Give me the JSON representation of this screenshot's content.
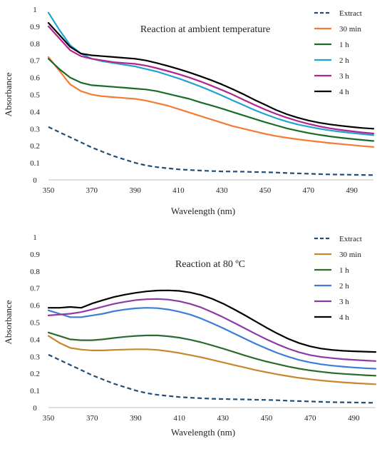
{
  "chart_data": [
    {
      "type": "line",
      "title": "Reaction at ambient temperature",
      "xlabel": "Wavelength (nm)",
      "ylabel": "Absorbance",
      "xlim": [
        350,
        500
      ],
      "ylim": [
        0,
        1
      ],
      "xticks": [
        "350",
        "370",
        "390",
        "410",
        "430",
        "450",
        "470",
        "490"
      ],
      "yticks": [
        "0",
        "0.1",
        "0.2",
        "0.3",
        "0.4",
        "0.5",
        "0.6",
        "0.7",
        "0.8",
        "0.9",
        "1"
      ],
      "grid": false,
      "legend_position": "right",
      "x": [
        350,
        355,
        360,
        365,
        370,
        375,
        380,
        385,
        390,
        395,
        400,
        405,
        410,
        415,
        420,
        425,
        430,
        435,
        440,
        445,
        450,
        455,
        460,
        465,
        470,
        475,
        480,
        485,
        490,
        495,
        500
      ],
      "series": [
        {
          "name": "Extract",
          "color": "#1f4e79",
          "dash": true,
          "values": [
            0.31,
            0.28,
            0.25,
            0.22,
            0.19,
            0.165,
            0.14,
            0.12,
            0.1,
            0.085,
            0.075,
            0.068,
            0.062,
            0.058,
            0.055,
            0.052,
            0.05,
            0.049,
            0.048,
            0.046,
            0.045,
            0.043,
            0.04,
            0.038,
            0.036,
            0.034,
            0.032,
            0.031,
            0.03,
            0.029,
            0.028
          ]
        },
        {
          "name": "30 min",
          "color": "#f47b35",
          "values": [
            0.72,
            0.64,
            0.56,
            0.52,
            0.5,
            0.49,
            0.485,
            0.48,
            0.475,
            0.465,
            0.45,
            0.435,
            0.415,
            0.395,
            0.375,
            0.355,
            0.335,
            0.315,
            0.3,
            0.285,
            0.27,
            0.257,
            0.247,
            0.238,
            0.23,
            0.223,
            0.216,
            0.21,
            0.204,
            0.198,
            0.193
          ]
        },
        {
          "name": "1 h",
          "color": "#1a6b28",
          "values": [
            0.71,
            0.65,
            0.6,
            0.57,
            0.555,
            0.55,
            0.545,
            0.54,
            0.535,
            0.53,
            0.52,
            0.505,
            0.49,
            0.475,
            0.455,
            0.437,
            0.418,
            0.398,
            0.378,
            0.358,
            0.338,
            0.32,
            0.302,
            0.288,
            0.275,
            0.264,
            0.255,
            0.247,
            0.24,
            0.234,
            0.228
          ]
        },
        {
          "name": "2 h",
          "color": "#1fa3d1",
          "values": [
            0.98,
            0.88,
            0.79,
            0.74,
            0.71,
            0.695,
            0.685,
            0.675,
            0.665,
            0.65,
            0.635,
            0.615,
            0.595,
            0.572,
            0.548,
            0.522,
            0.495,
            0.466,
            0.438,
            0.41,
            0.385,
            0.362,
            0.342,
            0.325,
            0.312,
            0.3,
            0.29,
            0.282,
            0.275,
            0.268,
            0.262
          ]
        },
        {
          "name": "3 h",
          "color": "#b3248f",
          "values": [
            0.9,
            0.83,
            0.76,
            0.725,
            0.71,
            0.7,
            0.69,
            0.685,
            0.68,
            0.67,
            0.655,
            0.638,
            0.62,
            0.6,
            0.578,
            0.553,
            0.527,
            0.5,
            0.47,
            0.44,
            0.412,
            0.387,
            0.365,
            0.345,
            0.328,
            0.314,
            0.302,
            0.293,
            0.285,
            0.278,
            0.272
          ]
        },
        {
          "name": "4 h",
          "color": "#000000",
          "values": [
            0.92,
            0.85,
            0.78,
            0.74,
            0.73,
            0.725,
            0.72,
            0.715,
            0.71,
            0.7,
            0.685,
            0.668,
            0.65,
            0.63,
            0.608,
            0.585,
            0.56,
            0.532,
            0.502,
            0.47,
            0.44,
            0.41,
            0.385,
            0.365,
            0.348,
            0.335,
            0.325,
            0.317,
            0.31,
            0.304,
            0.3
          ]
        }
      ]
    },
    {
      "type": "line",
      "title": "Reaction at 80 ºC",
      "xlabel": "Wavelength (nm)",
      "ylabel": "Absorbance",
      "xlim": [
        350,
        500
      ],
      "ylim": [
        0,
        1
      ],
      "xticks": [
        "350",
        "370",
        "390",
        "410",
        "430",
        "450",
        "470",
        "490"
      ],
      "yticks": [
        "0",
        "0.1",
        "0.2",
        "0.3",
        "0.4",
        "0.5",
        "0.6",
        "0.7",
        "0.8",
        "0.9",
        "1"
      ],
      "grid": false,
      "legend_position": "right",
      "x": [
        350,
        355,
        360,
        365,
        370,
        375,
        380,
        385,
        390,
        395,
        400,
        405,
        410,
        415,
        420,
        425,
        430,
        435,
        440,
        445,
        450,
        455,
        460,
        465,
        470,
        475,
        480,
        485,
        490,
        495,
        500
      ],
      "series": [
        {
          "name": "Extract",
          "color": "#1f4e79",
          "dash": true,
          "values": [
            0.31,
            0.28,
            0.25,
            0.22,
            0.19,
            0.165,
            0.14,
            0.12,
            0.1,
            0.085,
            0.075,
            0.068,
            0.062,
            0.058,
            0.055,
            0.052,
            0.05,
            0.049,
            0.048,
            0.046,
            0.045,
            0.043,
            0.04,
            0.038,
            0.036,
            0.034,
            0.032,
            0.031,
            0.03,
            0.029,
            0.028
          ]
        },
        {
          "name": "30 min",
          "color": "#c8862e",
          "values": [
            0.42,
            0.38,
            0.35,
            0.34,
            0.335,
            0.335,
            0.338,
            0.34,
            0.342,
            0.342,
            0.338,
            0.33,
            0.32,
            0.308,
            0.295,
            0.28,
            0.265,
            0.25,
            0.235,
            0.22,
            0.207,
            0.195,
            0.184,
            0.174,
            0.166,
            0.159,
            0.153,
            0.148,
            0.144,
            0.14,
            0.137
          ]
        },
        {
          "name": "1 h",
          "color": "#2d6a2d",
          "values": [
            0.44,
            0.42,
            0.4,
            0.395,
            0.395,
            0.4,
            0.408,
            0.415,
            0.42,
            0.423,
            0.423,
            0.418,
            0.41,
            0.398,
            0.383,
            0.365,
            0.346,
            0.326,
            0.306,
            0.287,
            0.27,
            0.255,
            0.24,
            0.228,
            0.218,
            0.21,
            0.203,
            0.198,
            0.194,
            0.19,
            0.187
          ]
        },
        {
          "name": "2 h",
          "color": "#3b7dd8",
          "values": [
            0.57,
            0.55,
            0.53,
            0.53,
            0.54,
            0.55,
            0.565,
            0.575,
            0.582,
            0.585,
            0.583,
            0.575,
            0.562,
            0.545,
            0.522,
            0.495,
            0.466,
            0.435,
            0.404,
            0.374,
            0.346,
            0.32,
            0.298,
            0.279,
            0.265,
            0.254,
            0.246,
            0.24,
            0.235,
            0.231,
            0.228
          ]
        },
        {
          "name": "3 h",
          "color": "#8e3aa5",
          "values": [
            0.54,
            0.545,
            0.55,
            0.56,
            0.575,
            0.592,
            0.608,
            0.62,
            0.63,
            0.635,
            0.637,
            0.633,
            0.623,
            0.608,
            0.587,
            0.56,
            0.53,
            0.498,
            0.465,
            0.432,
            0.4,
            0.371,
            0.345,
            0.324,
            0.308,
            0.297,
            0.29,
            0.284,
            0.28,
            0.276,
            0.273
          ]
        },
        {
          "name": "4 h",
          "color": "#000000",
          "values": [
            0.585,
            0.585,
            0.59,
            0.585,
            0.61,
            0.63,
            0.648,
            0.662,
            0.673,
            0.681,
            0.686,
            0.687,
            0.684,
            0.675,
            0.66,
            0.638,
            0.61,
            0.577,
            0.542,
            0.505,
            0.468,
            0.434,
            0.403,
            0.378,
            0.359,
            0.346,
            0.338,
            0.333,
            0.33,
            0.328,
            0.326
          ]
        }
      ]
    }
  ]
}
